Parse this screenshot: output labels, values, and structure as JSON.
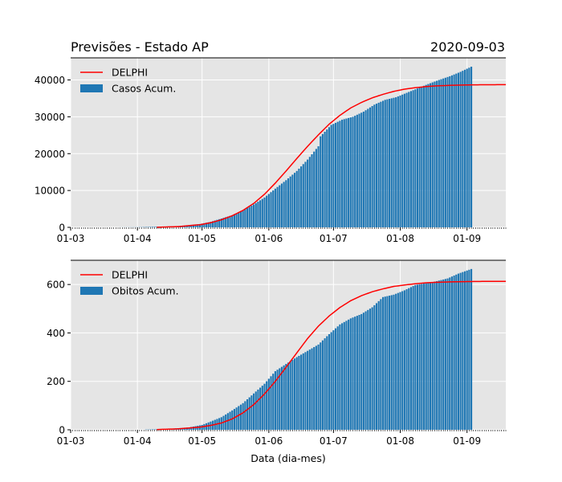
{
  "figure": {
    "title_left": "Previsões - Estado AP",
    "title_right": "2020-09-03",
    "xlabel": "Data (dia-mes)"
  },
  "colors": {
    "bar": "#1f77b4",
    "line": "#ff0000",
    "axes_bg": "#e5e5e5",
    "grid": "#ffffff"
  },
  "chart_data": [
    {
      "type": "bar",
      "title": "Previsões - Estado AP",
      "subtitle": "2020-09-03",
      "x_ticks": [
        "01-03",
        "01-04",
        "01-05",
        "01-06",
        "01-07",
        "01-08",
        "01-09"
      ],
      "x_range": [
        "2020-03-01",
        "2020-09-19"
      ],
      "ylim": [
        0,
        46000
      ],
      "y_ticks": [
        "0",
        "10000",
        "20000",
        "30000",
        "40000"
      ],
      "y_tick_values": [
        0,
        10000,
        20000,
        30000,
        40000
      ],
      "grid": true,
      "legend_position": "top-left",
      "series": [
        {
          "name": "DELPHI",
          "type": "line",
          "points": [
            [
              "2020-04-10",
              20
            ],
            [
              "2020-04-20",
              200
            ],
            [
              "2020-04-30",
              720
            ],
            [
              "2020-05-05",
              1250
            ],
            [
              "2020-05-10",
              2050
            ],
            [
              "2020-05-15",
              3150
            ],
            [
              "2020-05-20",
              4600
            ],
            [
              "2020-05-25",
              6500
            ],
            [
              "2020-05-30",
              9000
            ],
            [
              "2020-06-04",
              12000
            ],
            [
              "2020-06-09",
              15300
            ],
            [
              "2020-06-14",
              18700
            ],
            [
              "2020-06-19",
              22000
            ],
            [
              "2020-06-24",
              25100
            ],
            [
              "2020-06-29",
              28000
            ],
            [
              "2020-07-04",
              30400
            ],
            [
              "2020-07-09",
              32400
            ],
            [
              "2020-07-14",
              33900
            ],
            [
              "2020-07-19",
              35150
            ],
            [
              "2020-07-24",
              36100
            ],
            [
              "2020-07-29",
              36900
            ],
            [
              "2020-08-03",
              37500
            ],
            [
              "2020-08-08",
              37900
            ],
            [
              "2020-08-13",
              38200
            ],
            [
              "2020-08-18",
              38400
            ],
            [
              "2020-08-25",
              38550
            ],
            [
              "2020-09-01",
              38650
            ],
            [
              "2020-09-10",
              38700
            ],
            [
              "2020-09-19",
              38720
            ]
          ]
        },
        {
          "name": "Casos Acum.",
          "type": "bar",
          "start": "2020-03-20",
          "end": "2020-09-03",
          "points": [
            [
              "2020-03-20",
              1
            ],
            [
              "2020-04-01",
              40
            ],
            [
              "2020-04-10",
              160
            ],
            [
              "2020-04-20",
              350
            ],
            [
              "2020-04-30",
              900
            ],
            [
              "2020-05-05",
              1500
            ],
            [
              "2020-05-10",
              2400
            ],
            [
              "2020-05-15",
              3300
            ],
            [
              "2020-05-20",
              4600
            ],
            [
              "2020-05-25",
              6200
            ],
            [
              "2020-05-30",
              8100
            ],
            [
              "2020-06-04",
              10500
            ],
            [
              "2020-06-09",
              12800
            ],
            [
              "2020-06-14",
              15300
            ],
            [
              "2020-06-19",
              18400
            ],
            [
              "2020-06-24",
              22000
            ],
            [
              "2020-06-25",
              24700
            ],
            [
              "2020-06-30",
              27800
            ],
            [
              "2020-07-05",
              29200
            ],
            [
              "2020-07-10",
              30000
            ],
            [
              "2020-07-15",
              31400
            ],
            [
              "2020-07-20",
              33300
            ],
            [
              "2020-07-25",
              34600
            ],
            [
              "2020-07-30",
              35300
            ],
            [
              "2020-08-04",
              36500
            ],
            [
              "2020-08-09",
              37700
            ],
            [
              "2020-08-14",
              38900
            ],
            [
              "2020-08-19",
              40000
            ],
            [
              "2020-08-24",
              41000
            ],
            [
              "2020-08-29",
              42200
            ],
            [
              "2020-09-03",
              43600
            ]
          ]
        }
      ]
    },
    {
      "type": "bar",
      "xlabel": "Data (dia-mes)",
      "x_ticks": [
        "01-03",
        "01-04",
        "01-05",
        "01-06",
        "01-07",
        "01-08",
        "01-09"
      ],
      "x_range": [
        "2020-03-01",
        "2020-09-19"
      ],
      "ylim": [
        0,
        700
      ],
      "y_ticks": [
        "0",
        "200",
        "400",
        "600"
      ],
      "y_tick_values": [
        0,
        200,
        400,
        600
      ],
      "grid": true,
      "legend_position": "top-left",
      "series": [
        {
          "name": "DELPHI",
          "type": "line",
          "points": [
            [
              "2020-04-10",
              1
            ],
            [
              "2020-04-20",
              4
            ],
            [
              "2020-04-30",
              11
            ],
            [
              "2020-05-05",
              18
            ],
            [
              "2020-05-10",
              28
            ],
            [
              "2020-05-15",
              45
            ],
            [
              "2020-05-20",
              70
            ],
            [
              "2020-05-25",
              104
            ],
            [
              "2020-05-30",
              148
            ],
            [
              "2020-06-04",
              200
            ],
            [
              "2020-06-09",
              258
            ],
            [
              "2020-06-14",
              318
            ],
            [
              "2020-06-19",
              377
            ],
            [
              "2020-06-24",
              428
            ],
            [
              "2020-06-29",
              470
            ],
            [
              "2020-07-04",
              505
            ],
            [
              "2020-07-09",
              533
            ],
            [
              "2020-07-14",
              554
            ],
            [
              "2020-07-19",
              570
            ],
            [
              "2020-07-24",
              582
            ],
            [
              "2020-07-29",
              592
            ],
            [
              "2020-08-03",
              598
            ],
            [
              "2020-08-08",
              603
            ],
            [
              "2020-08-13",
              607
            ],
            [
              "2020-08-18",
              609
            ],
            [
              "2020-08-25",
              611
            ],
            [
              "2020-09-01",
              612
            ],
            [
              "2020-09-10",
              613
            ],
            [
              "2020-09-19",
              613
            ]
          ]
        },
        {
          "name": "Obitos Acum.",
          "type": "bar",
          "start": "2020-04-05",
          "end": "2020-09-03",
          "points": [
            [
              "2020-04-05",
              1
            ],
            [
              "2020-04-15",
              3
            ],
            [
              "2020-04-25",
              10
            ],
            [
              "2020-05-01",
              20
            ],
            [
              "2020-05-05",
              34
            ],
            [
              "2020-05-10",
              52
            ],
            [
              "2020-05-15",
              80
            ],
            [
              "2020-05-20",
              110
            ],
            [
              "2020-05-25",
              150
            ],
            [
              "2020-05-30",
              190
            ],
            [
              "2020-06-04",
              242
            ],
            [
              "2020-06-09",
              272
            ],
            [
              "2020-06-14",
              300
            ],
            [
              "2020-06-19",
              326
            ],
            [
              "2020-06-24",
              352
            ],
            [
              "2020-06-29",
              395
            ],
            [
              "2020-07-04",
              435
            ],
            [
              "2020-07-09",
              460
            ],
            [
              "2020-07-14",
              478
            ],
            [
              "2020-07-19",
              506
            ],
            [
              "2020-07-24",
              548
            ],
            [
              "2020-07-29",
              558
            ],
            [
              "2020-08-03",
              576
            ],
            [
              "2020-08-08",
              598
            ],
            [
              "2020-08-13",
              605
            ],
            [
              "2020-08-18",
              614
            ],
            [
              "2020-08-23",
              625
            ],
            [
              "2020-08-28",
              645
            ],
            [
              "2020-09-03",
              664
            ]
          ]
        }
      ]
    }
  ]
}
